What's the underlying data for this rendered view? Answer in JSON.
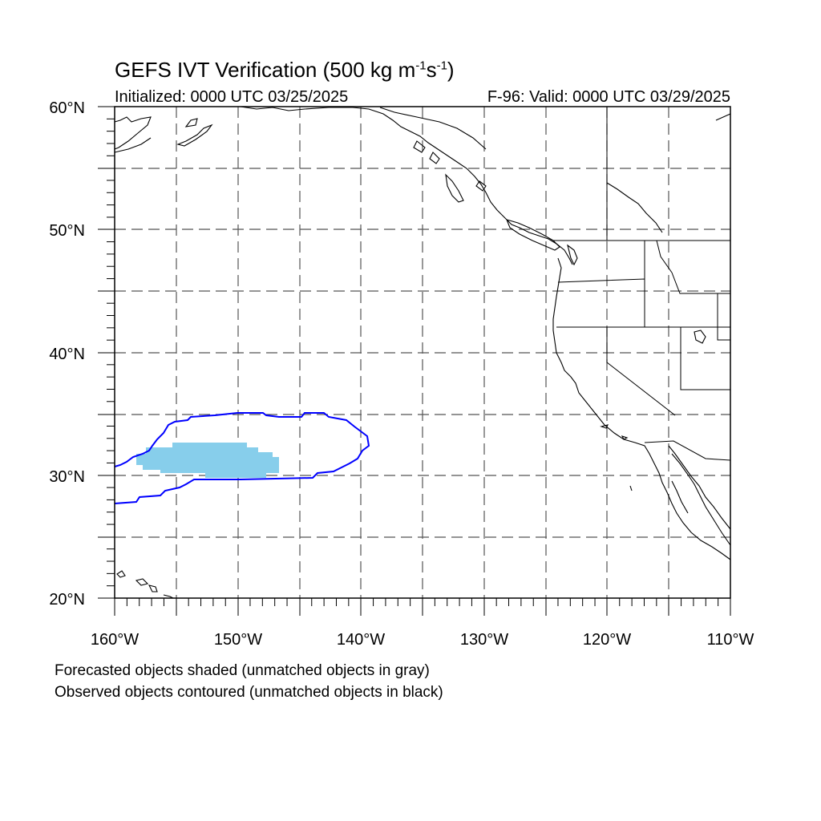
{
  "title": {
    "main": "GEFS IVT Verification (500 kg m",
    "sup1": "-1",
    "mid": "s",
    "sup2": "-1",
    "end": ")"
  },
  "initialized": "Initialized: 0000 UTC 03/25/2025",
  "valid": "F-96: Valid: 0000 UTC 03/29/2025",
  "map": {
    "lon_range": [
      -160,
      -110
    ],
    "lat_range": [
      20,
      60
    ],
    "lat_labels": [
      "60°N",
      "50°N",
      "40°N",
      "30°N",
      "20°N"
    ],
    "lon_labels": [
      "160°W",
      "150°W",
      "140°W",
      "130°W",
      "120°W",
      "110°W"
    ],
    "grid": "dashed every 5 degrees",
    "forecast_color": "#87ceeb",
    "observed_color": "#0000ff"
  },
  "notes": {
    "line1": "Forecasted objects shaded (unmatched objects in gray)",
    "line2": "Observed objects contoured (unmatched objects in black)"
  }
}
